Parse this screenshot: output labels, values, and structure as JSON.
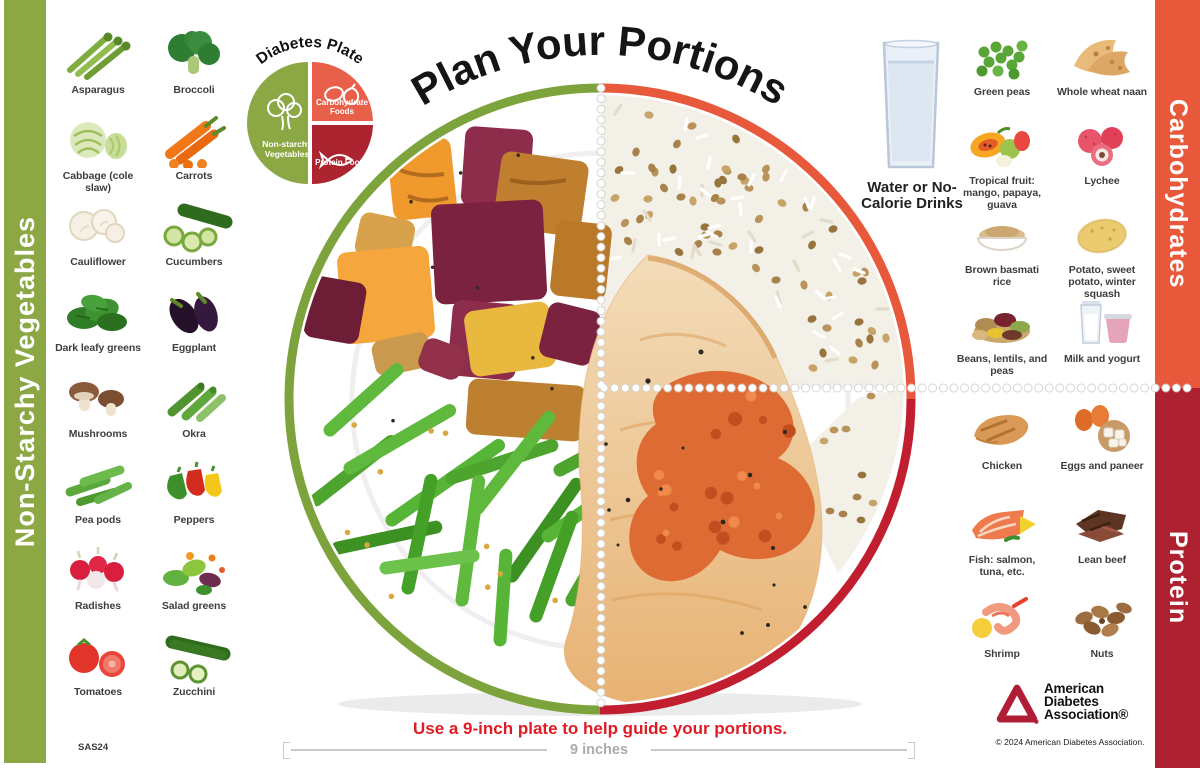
{
  "poster": {
    "title": "Plan Your Portions",
    "footnote": "Use a 9-inch plate to help guide your portions.",
    "ruler_label": "9 inches",
    "sku_code": "SAS24",
    "copyright": "© 2024 American Diabetes Association."
  },
  "colors": {
    "veg_green": "#8CA845",
    "rim_green": "#7DA33C",
    "carb_orange": "#E8593C",
    "mini_carb_orange": "#E8604A",
    "protein_dark_red": "#AE2130",
    "rim_red": "#C11F30",
    "note_red": "#E01B24"
  },
  "sidebars": {
    "left": {
      "label": "Non-Starchy Vegetables"
    },
    "right_top": {
      "label": "Carbohydrates"
    },
    "right_bottom": {
      "label": "Protein"
    }
  },
  "diabetes_plate": {
    "title": "Diabetes Plate",
    "segments": [
      {
        "label": "Non-starchy Vegetables",
        "icon": "leafy-greens-icon",
        "color": "#8CA845"
      },
      {
        "label": "Carbohydrate Foods",
        "icon": "carb-foods-icon",
        "color": "#E8604A"
      },
      {
        "label": "Protein Foods",
        "icon": "fish-outline-icon",
        "color": "#AB2430"
      }
    ]
  },
  "water": {
    "label": "Water or No-Calorie Drinks",
    "icon": "water-glass-icon"
  },
  "food_groups": {
    "non_starchy_vegetables": {
      "items": [
        {
          "name": "Asparagus",
          "icon": "asparagus-icon"
        },
        {
          "name": "Broccoli",
          "icon": "broccoli-icon"
        },
        {
          "name": "Cabbage (cole slaw)",
          "icon": "cabbage-icon"
        },
        {
          "name": "Carrots",
          "icon": "carrots-icon"
        },
        {
          "name": "Cauliflower",
          "icon": "cauliflower-icon"
        },
        {
          "name": "Cucumbers",
          "icon": "cucumbers-icon"
        },
        {
          "name": "Dark leafy greens",
          "icon": "dark-leafy-greens-icon"
        },
        {
          "name": "Eggplant",
          "icon": "eggplant-icon"
        },
        {
          "name": "Mushrooms",
          "icon": "mushrooms-icon"
        },
        {
          "name": "Okra",
          "icon": "okra-icon"
        },
        {
          "name": "Pea pods",
          "icon": "pea-pods-icon"
        },
        {
          "name": "Peppers",
          "icon": "peppers-icon"
        },
        {
          "name": "Radishes",
          "icon": "radishes-icon"
        },
        {
          "name": "Salad greens",
          "icon": "salad-greens-icon"
        },
        {
          "name": "Tomatoes",
          "icon": "tomatoes-icon"
        },
        {
          "name": "Zucchini",
          "icon": "zucchini-icon"
        }
      ]
    },
    "carbohydrates": {
      "items": [
        {
          "name": "Green peas",
          "icon": "green-peas-icon"
        },
        {
          "name": "Whole wheat naan",
          "icon": "naan-icon"
        },
        {
          "name": "Tropical fruit: mango, papaya, guava",
          "icon": "tropical-fruit-icon"
        },
        {
          "name": "Lychee",
          "icon": "lychee-icon"
        },
        {
          "name": "Brown basmati rice",
          "icon": "basmati-rice-icon"
        },
        {
          "name": "Potato, sweet potato, winter squash",
          "icon": "potato-icon"
        },
        {
          "name": "Beans, lentils, and peas",
          "icon": "beans-lentils-icon"
        },
        {
          "name": "Milk and yogurt",
          "icon": "milk-yogurt-icon"
        }
      ]
    },
    "protein": {
      "items": [
        {
          "name": "Chicken",
          "icon": "chicken-icon"
        },
        {
          "name": "Eggs and paneer",
          "icon": "eggs-paneer-icon"
        },
        {
          "name": "Fish: salmon, tuna, etc.",
          "icon": "fish-salmon-icon"
        },
        {
          "name": "Lean beef",
          "icon": "lean-beef-icon"
        },
        {
          "name": "Shrimp",
          "icon": "shrimp-icon"
        },
        {
          "name": "Nuts",
          "icon": "nuts-icon"
        }
      ]
    }
  },
  "logo": {
    "name": "American Diabetes Association®"
  }
}
